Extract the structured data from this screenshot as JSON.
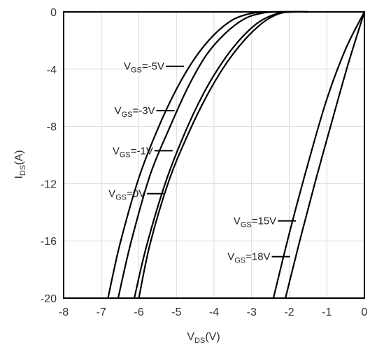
{
  "chart_data": {
    "type": "line",
    "xlabel": {
      "main": "V",
      "sub": "DS",
      "unit": "(V)"
    },
    "ylabel": {
      "main": "I",
      "sub": "DS",
      "unit": "(A)"
    },
    "xlim": [
      -8,
      0
    ],
    "ylim": [
      -20,
      0
    ],
    "xticks": [
      -8,
      -7,
      -6,
      -5,
      -4,
      -3,
      -2,
      -1,
      0
    ],
    "yticks": [
      0,
      -4,
      -8,
      -12,
      -16,
      -20
    ],
    "xtick_labels": [
      "-8",
      "-7",
      "-6",
      "-5",
      "-4",
      "-3",
      "-2",
      "-1",
      "0"
    ],
    "ytick_labels": [
      "0",
      "-4",
      "-8",
      "-12",
      "-16",
      "-20"
    ],
    "grid": true,
    "legend": "none",
    "line_color": "#000000",
    "series": [
      {
        "label_main": "V",
        "label_sub": "GS",
        "label_value": "=-5V",
        "label_anchor": {
          "x": -4.8,
          "y": -3.8
        },
        "points": [
          [
            -6.82,
            -20
          ],
          [
            -6.5,
            -16.2
          ],
          [
            -6.0,
            -11.6
          ],
          [
            -5.5,
            -8.2
          ],
          [
            -5.0,
            -5.4
          ],
          [
            -4.5,
            -3.2
          ],
          [
            -4.0,
            -1.6
          ],
          [
            -3.5,
            -0.55
          ],
          [
            -3.0,
            -0.1
          ],
          [
            -2.5,
            0
          ],
          [
            -1.5,
            0
          ]
        ]
      },
      {
        "label_main": "V",
        "label_sub": "GS",
        "label_value": "=-3V",
        "label_anchor": {
          "x": -5.05,
          "y": -6.9
        },
        "points": [
          [
            -6.55,
            -20
          ],
          [
            -6.2,
            -16.0
          ],
          [
            -5.7,
            -11.4
          ],
          [
            -5.2,
            -8.2
          ],
          [
            -4.7,
            -5.3
          ],
          [
            -4.2,
            -3.0
          ],
          [
            -3.7,
            -1.5
          ],
          [
            -3.2,
            -0.5
          ],
          [
            -2.75,
            -0.1
          ],
          [
            -2.3,
            0
          ],
          [
            -1.5,
            0
          ]
        ]
      },
      {
        "label_main": "V",
        "label_sub": "GS",
        "label_value": "=-1V",
        "label_anchor": {
          "x": -5.1,
          "y": -9.7
        },
        "points": [
          [
            -6.12,
            -20
          ],
          [
            -5.8,
            -16.4
          ],
          [
            -5.3,
            -12.0
          ],
          [
            -4.8,
            -8.6
          ],
          [
            -4.3,
            -5.8
          ],
          [
            -3.8,
            -3.6
          ],
          [
            -3.3,
            -1.9
          ],
          [
            -2.8,
            -0.7
          ],
          [
            -2.3,
            -0.1
          ],
          [
            -1.9,
            0
          ],
          [
            -1.5,
            0
          ]
        ]
      },
      {
        "label_main": "V",
        "label_sub": "GS",
        "label_value": "=0V",
        "label_anchor": {
          "x": -5.3,
          "y": -12.7
        },
        "points": [
          [
            -6.0,
            -20
          ],
          [
            -5.7,
            -16.2
          ],
          [
            -5.2,
            -11.8
          ],
          [
            -4.7,
            -8.6
          ],
          [
            -4.2,
            -5.9
          ],
          [
            -3.7,
            -3.7
          ],
          [
            -3.2,
            -2.0
          ],
          [
            -2.7,
            -0.75
          ],
          [
            -2.3,
            -0.15
          ],
          [
            -1.95,
            0
          ],
          [
            -1.5,
            0
          ]
        ]
      },
      {
        "label_main": "V",
        "label_sub": "GS",
        "label_value": "=15V",
        "label_anchor": {
          "x": -1.82,
          "y": -14.6
        },
        "points": [
          [
            -2.42,
            -20
          ],
          [
            -2.0,
            -15.5
          ],
          [
            -1.5,
            -10.6
          ],
          [
            -1.0,
            -6.1
          ],
          [
            -0.5,
            -2.6
          ],
          [
            0,
            0
          ]
        ]
      },
      {
        "label_main": "V",
        "label_sub": "GS",
        "label_value": "=18V",
        "label_anchor": {
          "x": -1.98,
          "y": -17.1
        },
        "points": [
          [
            -2.1,
            -20
          ],
          [
            -1.7,
            -15.8
          ],
          [
            -1.3,
            -11.8
          ],
          [
            -0.9,
            -8.0
          ],
          [
            -0.45,
            -3.8
          ],
          [
            0,
            0
          ]
        ]
      }
    ]
  }
}
